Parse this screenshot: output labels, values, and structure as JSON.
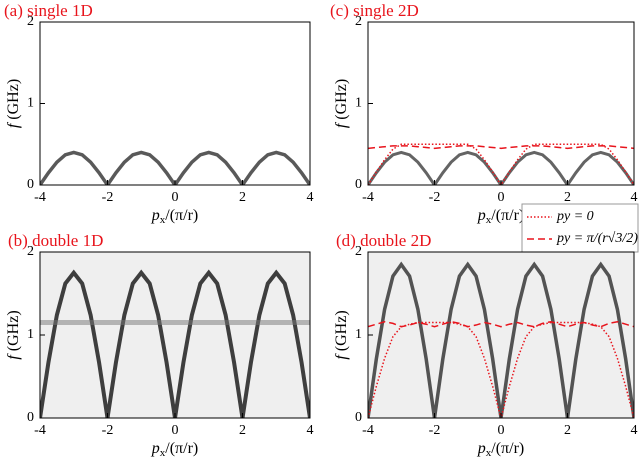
{
  "chart_data": [
    {
      "type": "line",
      "title": "(a) single 1D",
      "xlabel": [
        "p",
        "x",
        "/(π/r)"
      ],
      "ylabel": [
        "f",
        " (GHz)"
      ],
      "xlim": [
        -4,
        4
      ],
      "ylim": [
        0,
        2
      ],
      "xticks": [
        -4,
        -2,
        0,
        2,
        4
      ],
      "yticks": [
        0,
        1,
        2
      ],
      "x": [
        -4,
        -3.75,
        -3.5,
        -3.25,
        -3,
        -2.75,
        -2.5,
        -2.25,
        -2,
        -1.75,
        -1.5,
        -1.25,
        -1,
        -0.75,
        -0.5,
        -0.25,
        0,
        0.25,
        0.5,
        0.75,
        1,
        1.25,
        1.5,
        1.75,
        2,
        2.25,
        2.5,
        2.75,
        3,
        3.25,
        3.5,
        3.75,
        4
      ],
      "series": [
        {
          "color": "#222222",
          "style": "solid",
          "width": 3.5,
          "opacity": 0.75,
          "values": [
            0,
            0.15,
            0.28,
            0.37,
            0.4,
            0.37,
            0.28,
            0.15,
            0,
            0.15,
            0.28,
            0.37,
            0.4,
            0.37,
            0.28,
            0.15,
            0,
            0.15,
            0.28,
            0.37,
            0.4,
            0.37,
            0.28,
            0.15,
            0,
            0.15,
            0.28,
            0.37,
            0.4,
            0.37,
            0.28,
            0.15,
            0
          ]
        }
      ]
    },
    {
      "type": "line",
      "title": "(b) double 1D",
      "xlabel": [
        "p",
        "x",
        "/(π/r)"
      ],
      "ylabel": [
        "f",
        " (GHz)"
      ],
      "xlim": [
        -4,
        4
      ],
      "ylim": [
        0,
        2
      ],
      "xticks": [
        -4,
        -2,
        0,
        2,
        4
      ],
      "yticks": [
        0,
        1,
        2
      ],
      "background": "#efefef",
      "x": [
        -4,
        -3.75,
        -3.5,
        -3.25,
        -3,
        -2.75,
        -2.5,
        -2.25,
        -2,
        -1.75,
        -1.5,
        -1.25,
        -1,
        -0.75,
        -0.5,
        -0.25,
        0,
        0.25,
        0.5,
        0.75,
        1,
        1.25,
        1.5,
        1.75,
        2,
        2.25,
        2.5,
        2.75,
        3,
        3.25,
        3.5,
        3.75,
        4
      ],
      "series": [
        {
          "color": "#111111",
          "style": "solid",
          "width": 4,
          "opacity": 0.8,
          "values": [
            0,
            0.67,
            1.24,
            1.62,
            1.75,
            1.62,
            1.24,
            0.67,
            0,
            0.67,
            1.24,
            1.62,
            1.75,
            1.62,
            1.24,
            0.67,
            0,
            0.67,
            1.24,
            1.62,
            1.75,
            1.62,
            1.24,
            0.67,
            0,
            0.67,
            1.24,
            1.62,
            1.75,
            1.62,
            1.24,
            0.67,
            0
          ]
        },
        {
          "color": "#777777",
          "style": "solid",
          "width": 5,
          "opacity": 0.5,
          "values": [
            1.15,
            1.15,
            1.15,
            1.15,
            1.15,
            1.15,
            1.15,
            1.15,
            1.15,
            1.15,
            1.15,
            1.15,
            1.15,
            1.15,
            1.15,
            1.15,
            1.15,
            1.15,
            1.15,
            1.15,
            1.15,
            1.15,
            1.15,
            1.15,
            1.15,
            1.15,
            1.15,
            1.15,
            1.15,
            1.15,
            1.15,
            1.15,
            1.15
          ]
        }
      ]
    },
    {
      "type": "line",
      "title": "(c) single 2D",
      "xlabel": [
        "p",
        "x",
        "/(π/r)"
      ],
      "ylabel": [
        "f",
        " (GHz)"
      ],
      "xlim": [
        -4,
        4
      ],
      "ylim": [
        0,
        2
      ],
      "xticks": [
        -4,
        -2,
        0,
        2,
        4
      ],
      "yticks": [
        0,
        1,
        2
      ],
      "legend": "below-right",
      "x": [
        -4,
        -3.75,
        -3.5,
        -3.25,
        -3,
        -2.75,
        -2.5,
        -2.25,
        -2,
        -1.75,
        -1.5,
        -1.25,
        -1,
        -0.75,
        -0.5,
        -0.25,
        0,
        0.25,
        0.5,
        0.75,
        1,
        1.25,
        1.5,
        1.75,
        2,
        2.25,
        2.5,
        2.75,
        3,
        3.25,
        3.5,
        3.75,
        4
      ],
      "series": [
        {
          "color": "#222222",
          "style": "solid",
          "width": 3,
          "opacity": 0.7,
          "values": [
            0,
            0.15,
            0.28,
            0.37,
            0.4,
            0.37,
            0.28,
            0.15,
            0,
            0.15,
            0.28,
            0.37,
            0.4,
            0.37,
            0.28,
            0.15,
            0,
            0.15,
            0.28,
            0.37,
            0.4,
            0.37,
            0.28,
            0.15,
            0,
            0.15,
            0.28,
            0.37,
            0.4,
            0.37,
            0.28,
            0.15,
            0
          ]
        },
        {
          "name": "py = 0",
          "color": "#e8141c",
          "style": "dotted",
          "width": 1.5,
          "opacity": 1,
          "values": [
            0,
            0.16,
            0.31,
            0.44,
            0.5,
            0.5,
            0.5,
            0.5,
            0.5,
            0.5,
            0.5,
            0.5,
            0.5,
            0.44,
            0.31,
            0.16,
            0,
            0.16,
            0.31,
            0.44,
            0.5,
            0.5,
            0.5,
            0.5,
            0.5,
            0.5,
            0.5,
            0.5,
            0.5,
            0.44,
            0.31,
            0.16,
            0
          ]
        },
        {
          "name": "py = π/(r√3/2)",
          "color": "#e8141c",
          "style": "dashed",
          "width": 1.5,
          "opacity": 1,
          "values": [
            0.45,
            0.46,
            0.47,
            0.48,
            0.48,
            0.48,
            0.47,
            0.46,
            0.45,
            0.46,
            0.47,
            0.48,
            0.48,
            0.48,
            0.47,
            0.46,
            0.45,
            0.46,
            0.47,
            0.48,
            0.48,
            0.48,
            0.47,
            0.46,
            0.45,
            0.46,
            0.47,
            0.48,
            0.48,
            0.48,
            0.47,
            0.46,
            0.45
          ]
        }
      ]
    },
    {
      "type": "line",
      "title": "(d) double 2D",
      "xlabel": [
        "p",
        "x",
        "/(π/r)"
      ],
      "ylabel": [
        "f",
        " (GHz)"
      ],
      "xlim": [
        -4,
        4
      ],
      "ylim": [
        0,
        2
      ],
      "xticks": [
        -4,
        -2,
        0,
        2,
        4
      ],
      "yticks": [
        0,
        1,
        2
      ],
      "background": "#efefef",
      "x": [
        -4,
        -3.75,
        -3.5,
        -3.25,
        -3,
        -2.75,
        -2.5,
        -2.25,
        -2,
        -1.75,
        -1.5,
        -1.25,
        -1,
        -0.75,
        -0.5,
        -0.25,
        0,
        0.25,
        0.5,
        0.75,
        1,
        1.25,
        1.5,
        1.75,
        2,
        2.25,
        2.5,
        2.75,
        3,
        3.25,
        3.5,
        3.75,
        4
      ],
      "series": [
        {
          "color": "#111111",
          "style": "solid",
          "width": 3.5,
          "opacity": 0.7,
          "values": [
            0,
            0.71,
            1.31,
            1.71,
            1.85,
            1.71,
            1.31,
            0.71,
            0,
            0.71,
            1.31,
            1.71,
            1.85,
            1.71,
            1.31,
            0.71,
            0,
            0.71,
            1.31,
            1.71,
            1.85,
            1.71,
            1.31,
            0.71,
            0,
            0.71,
            1.31,
            1.71,
            1.85,
            1.71,
            1.31,
            0.71,
            0
          ]
        },
        {
          "color": "#e8141c",
          "style": "dotted",
          "width": 1.5,
          "opacity": 1,
          "values": [
            0,
            0.38,
            0.72,
            0.98,
            1.1,
            1.13,
            1.15,
            1.15,
            1.15,
            1.15,
            1.15,
            1.13,
            1.1,
            0.98,
            0.72,
            0.38,
            0,
            0.38,
            0.72,
            0.98,
            1.1,
            1.13,
            1.15,
            1.15,
            1.15,
            1.15,
            1.15,
            1.13,
            1.1,
            0.98,
            0.72,
            0.38,
            0
          ]
        },
        {
          "color": "#e8141c",
          "style": "dashed",
          "width": 1.5,
          "opacity": 1,
          "values": [
            1.1,
            1.13,
            1.16,
            1.14,
            1.1,
            1.12,
            1.15,
            1.13,
            1.1,
            1.13,
            1.16,
            1.14,
            1.1,
            1.12,
            1.15,
            1.13,
            1.1,
            1.13,
            1.15,
            1.12,
            1.1,
            1.14,
            1.16,
            1.13,
            1.1,
            1.13,
            1.15,
            1.12,
            1.1,
            1.14,
            1.16,
            1.13,
            1.1
          ]
        }
      ]
    }
  ]
}
